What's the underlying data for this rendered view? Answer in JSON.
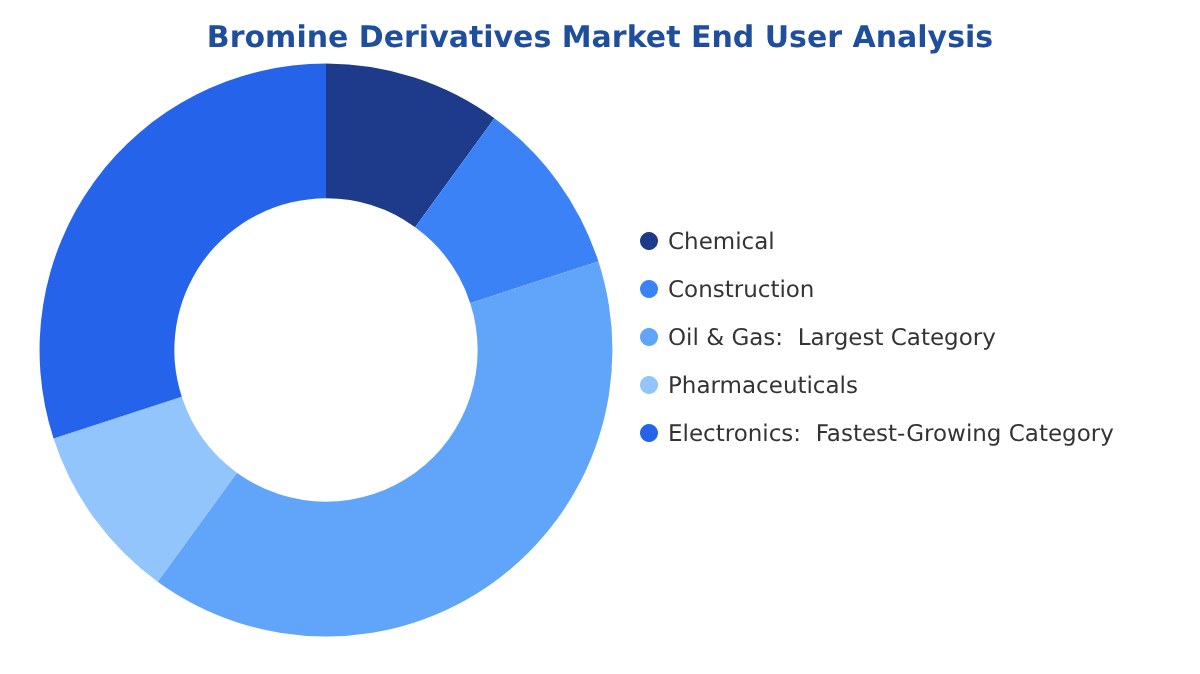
{
  "chart_data": {
    "type": "donut",
    "title": "Bromine Derivatives Market End User Analysis",
    "categories": [
      "Chemical",
      "Construction",
      "Oil & Gas:  Largest Category",
      "Pharmaceuticals",
      "Electronics:  Fastest-Growing Category"
    ],
    "values": [
      10,
      10,
      40,
      10,
      30
    ],
    "colors": [
      "#1e3a8a",
      "#3b82f6",
      "#60a5fa",
      "#93c5fd",
      "#2563eb"
    ],
    "legend": "right"
  }
}
